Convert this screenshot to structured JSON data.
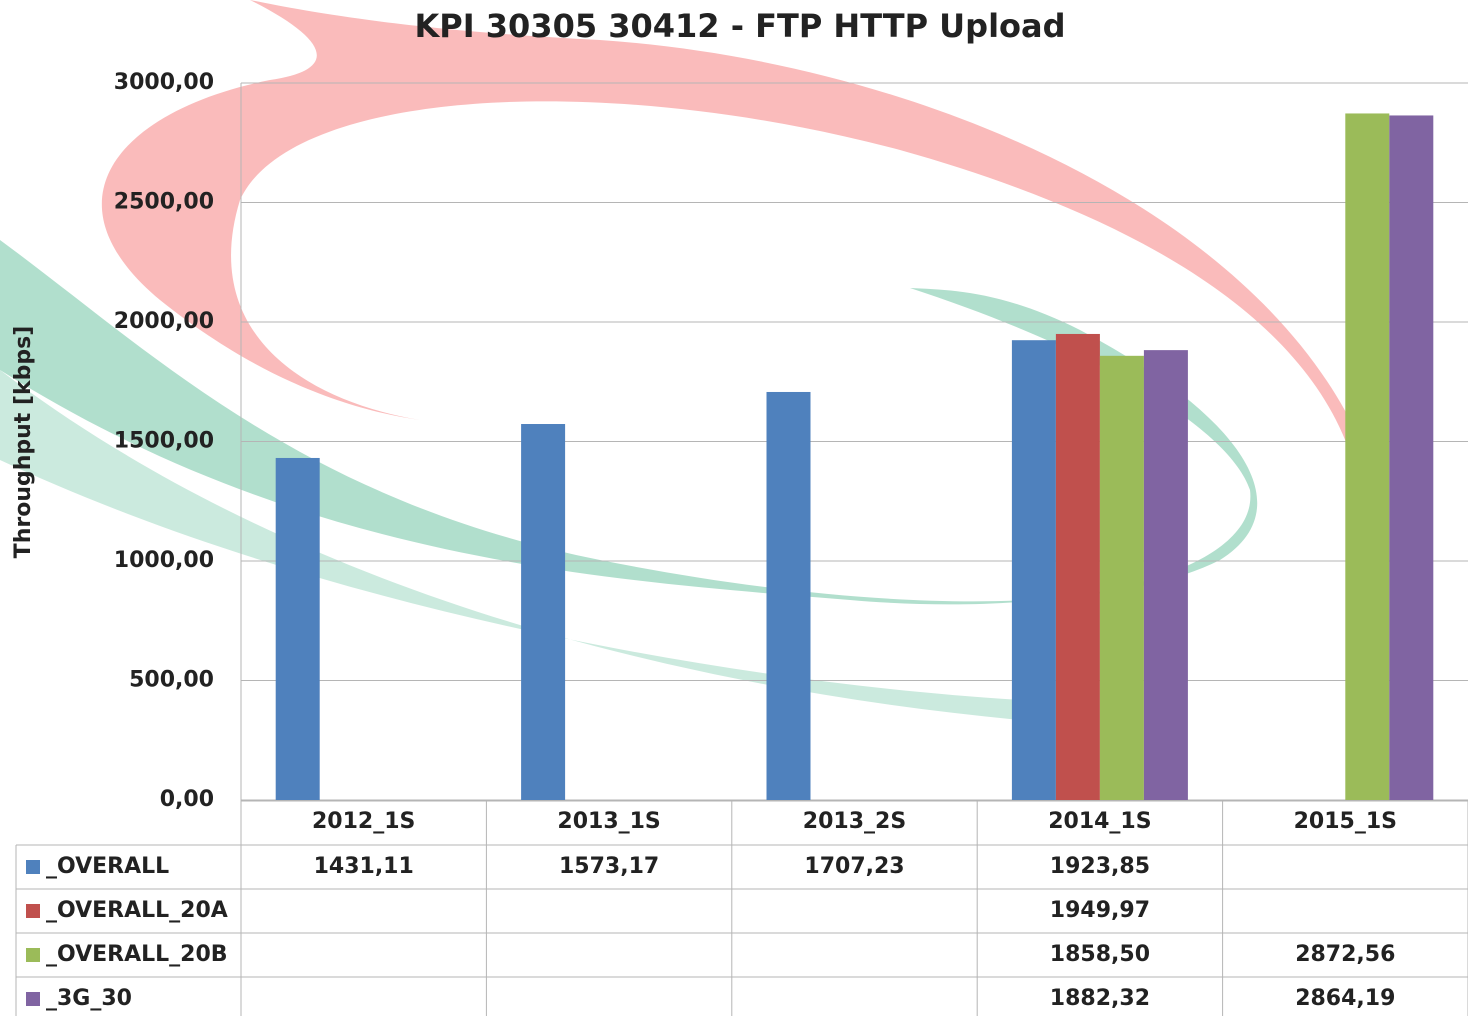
{
  "chart_data": {
    "type": "bar",
    "title": "KPI 30305 30412 - FTP HTTP Upload",
    "y_label": "Throughput [kbps]",
    "categories": [
      "2012_1S",
      "2013_1S",
      "2013_2S",
      "2014_1S",
      "2015_1S"
    ],
    "series": [
      {
        "name": "_OVERALL",
        "color": "#4f81bd",
        "values": [
          1431.11,
          1573.17,
          1707.23,
          1923.85,
          null
        ],
        "value_labels": [
          "1431,11",
          "1573,17",
          "1707,23",
          "1923,85",
          null
        ]
      },
      {
        "name": "_OVERALL_20A",
        "color": "#c0504d",
        "values": [
          null,
          null,
          null,
          1949.97,
          null
        ],
        "value_labels": [
          null,
          null,
          null,
          "1949,97",
          null
        ]
      },
      {
        "name": "_OVERALL_20B",
        "color": "#9bbb59",
        "values": [
          null,
          null,
          null,
          1858.5,
          2872.56
        ],
        "value_labels": [
          null,
          null,
          null,
          "1858,50",
          "2872,56"
        ]
      },
      {
        "name": "_3G_30",
        "color": "#8064a2",
        "values": [
          null,
          null,
          null,
          1882.32,
          2864.19
        ],
        "value_labels": [
          null,
          null,
          null,
          "1882,32",
          "2864,19"
        ]
      }
    ],
    "ylim": [
      0,
      3000
    ],
    "yticks": [
      {
        "value": 0,
        "label": "0,00"
      },
      {
        "value": 500,
        "label": "500,00"
      },
      {
        "value": 1000,
        "label": "1000,00"
      },
      {
        "value": 1500,
        "label": "1500,00"
      },
      {
        "value": 2000,
        "label": "2000,00"
      },
      {
        "value": 2500,
        "label": "2500,00"
      },
      {
        "value": 3000,
        "label": "3000,00"
      }
    ],
    "grid": true
  }
}
